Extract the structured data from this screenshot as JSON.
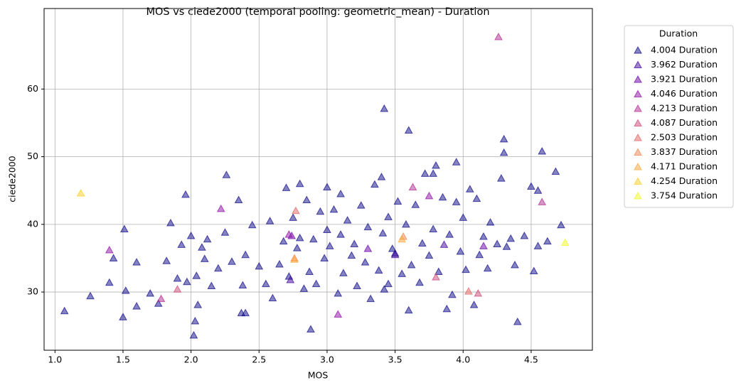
{
  "chart_data": {
    "type": "scatter",
    "title": "MOS vs ciede2000 (temporal pooling: geometric_mean) - Duration",
    "x_label": "MOS",
    "y_label": "ciede2000",
    "legend_title": "Duration",
    "legend_position": "outside-right",
    "grid": true,
    "marker": "triangle",
    "xlim": [
      0.92,
      4.95
    ],
    "ylim": [
      21.4,
      71.9
    ],
    "xticks": [
      {
        "value": 1,
        "label": "1.0"
      },
      1.5,
      {
        "value": 2,
        "label": "2.0"
      },
      2.5,
      {
        "value": 3,
        "label": "3.0"
      },
      3.5,
      {
        "value": 4,
        "label": "4.0"
      },
      4.5
    ],
    "yticks": [
      30,
      40,
      50,
      60
    ],
    "series": [
      {
        "name": "4.004 Duration",
        "color": "#0d0887",
        "x": [
          1.07,
          1.26,
          1.4,
          1.43,
          1.5,
          1.51,
          1.52,
          1.6,
          1.6,
          1.7,
          1.76,
          1.82,
          1.85,
          1.9,
          1.93,
          1.96,
          2.0,
          2.02,
          2.04,
          2.05,
          2.08,
          2.1,
          2.12,
          2.15,
          2.2,
          2.25,
          2.26,
          2.3,
          2.35,
          2.37,
          2.38,
          2.4,
          2.45,
          2.5,
          2.55,
          2.58,
          2.6,
          2.65,
          2.68,
          2.7,
          2.72,
          2.75,
          2.78,
          2.8,
          2.8,
          2.83,
          2.85,
          2.87,
          2.9,
          2.92,
          2.95,
          2.98,
          3.0,
          3.0,
          3.02,
          3.05,
          3.08,
          3.1,
          3.1,
          3.12,
          3.15,
          3.18,
          3.2,
          3.22,
          3.25,
          3.28,
          3.3,
          3.32,
          3.35,
          3.38,
          3.4,
          3.41,
          3.42,
          3.45,
          3.45,
          3.48,
          3.5,
          3.52,
          3.55,
          3.58,
          3.6,
          3.62,
          3.65,
          3.68,
          3.7,
          3.72,
          3.75,
          3.78,
          3.8,
          3.82,
          3.85,
          3.88,
          3.9,
          3.92,
          3.95,
          3.98,
          4.0,
          4.02,
          4.05,
          4.08,
          4.1,
          4.12,
          4.15,
          4.18,
          4.2,
          4.25,
          4.28,
          4.3,
          4.32,
          4.35,
          4.38,
          4.4,
          4.45,
          4.5,
          4.52,
          4.55,
          4.58,
          4.62,
          4.68,
          4.72,
          2.88,
          3.42,
          3.6,
          2.03,
          1.97,
          2.4,
          4.3,
          4.55,
          3.95,
          3.78
        ],
        "values": [
          27.2,
          29.4,
          31.4,
          35,
          26.3,
          39.3,
          30.2,
          27.9,
          34.4,
          29.8,
          28.3,
          34.6,
          40.2,
          32,
          37,
          44.4,
          38.3,
          23.6,
          32.4,
          28.1,
          36.6,
          34.9,
          37.8,
          30.9,
          33.5,
          38.8,
          47.3,
          34.5,
          43.6,
          26.9,
          31,
          35.5,
          39.9,
          33.8,
          31.2,
          40.5,
          29.1,
          34.1,
          37.5,
          45.4,
          32.3,
          41,
          36.5,
          46,
          38,
          30.5,
          43.6,
          33,
          37.8,
          31.2,
          41.9,
          35,
          39.2,
          45.5,
          36.8,
          42.2,
          29.8,
          38.5,
          44.5,
          32.8,
          40.6,
          35.4,
          37.1,
          30.9,
          42.8,
          34.4,
          39.6,
          29,
          45.9,
          33.2,
          47,
          38.7,
          30.4,
          31.2,
          41.1,
          36.4,
          35.7,
          43.4,
          32.7,
          40,
          27.3,
          34,
          42.9,
          31.4,
          37.2,
          47.5,
          35.4,
          39.3,
          48.7,
          33,
          44,
          27.5,
          38.5,
          29.6,
          43.3,
          36,
          41,
          33.3,
          45.2,
          28.1,
          43.8,
          35.5,
          38.2,
          33.5,
          40.3,
          37.1,
          46.8,
          52.6,
          36.7,
          37.9,
          34,
          25.6,
          38.3,
          45.6,
          33.1,
          36.8,
          50.8,
          37.5,
          47.8,
          39.9,
          24.5,
          57.1,
          53.9,
          25.7,
          31.5,
          26.9,
          50.6,
          45,
          49.2,
          47.5
        ]
      },
      {
        "name": "3.962 Duration",
        "color": "#41049d",
        "x": [
          2.73,
          3.5,
          3.86
        ],
        "values": [
          31.8,
          35.5,
          37
        ]
      },
      {
        "name": "3.921 Duration",
        "color": "#6a00a8",
        "x": [
          2.74,
          3.3,
          4.15
        ],
        "values": [
          38.3,
          36.4,
          36.8
        ]
      },
      {
        "name": "4.046 Duration",
        "color": "#8f0da4",
        "x": [
          1.4,
          2.22,
          2.72,
          3.08,
          3.75
        ],
        "values": [
          36.2,
          42.3,
          38.5,
          26.7,
          44.2
        ]
      },
      {
        "name": "4.213 Duration",
        "color": "#b12a90",
        "x": [
          4.26,
          3.63,
          4.58,
          1.78
        ],
        "values": [
          67.7,
          45.5,
          43.3,
          29
        ]
      },
      {
        "name": "4.087 Duration",
        "color": "#cc4778",
        "x": [
          4.11,
          3.8,
          1.9
        ],
        "values": [
          29.8,
          32.2,
          30.4
        ]
      },
      {
        "name": "2.503 Duration",
        "color": "#e16462",
        "x": [
          4.04,
          2.77
        ],
        "values": [
          30.1,
          42
        ]
      },
      {
        "name": "3.837 Duration",
        "color": "#f2844b",
        "x": [
          3.56,
          2.76
        ],
        "values": [
          38.2,
          35
        ]
      },
      {
        "name": "4.171 Duration",
        "color": "#fca636",
        "x": [
          2.76,
          3.55
        ],
        "values": [
          34.8,
          37.8
        ]
      },
      {
        "name": "4.254 Duration",
        "color": "#fcce25",
        "x": [
          1.19
        ],
        "values": [
          44.6
        ]
      },
      {
        "name": "3.754 Duration",
        "color": "#f0f921",
        "x": [
          4.75
        ],
        "values": [
          37.3
        ]
      }
    ]
  }
}
